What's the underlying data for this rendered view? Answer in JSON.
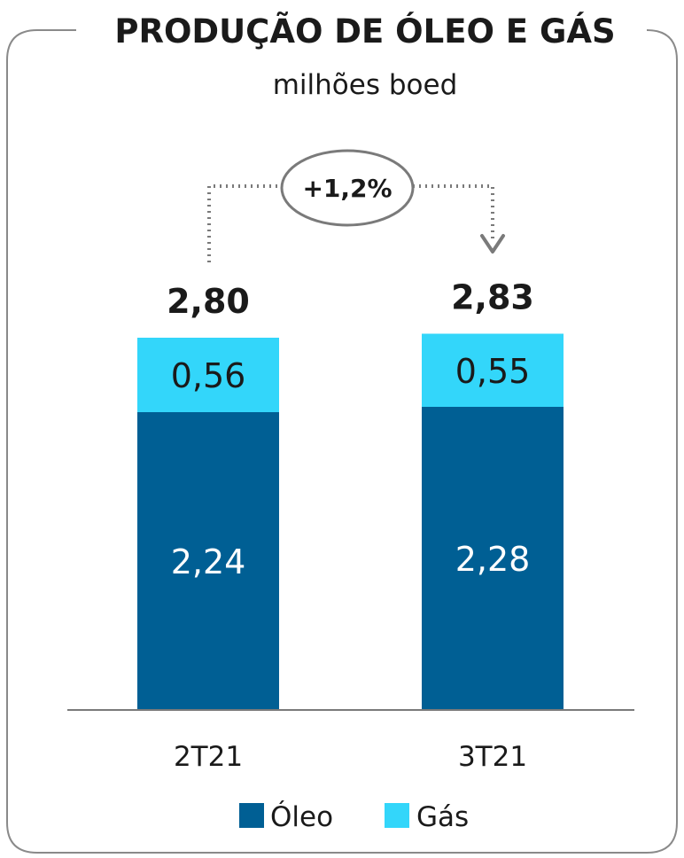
{
  "title": "PRODUÇÃO DE ÓLEO E GÁS",
  "subtitle": "milhões boed",
  "change_label": "+1,2%",
  "colors": {
    "oleo": "#005f94",
    "gas": "#33d6fa",
    "frame": "#8a8a8a",
    "arrow": "#7a7a7a",
    "axis": "#7a7a7a"
  },
  "chart_data": {
    "type": "bar",
    "stacked": true,
    "categories": [
      "2T21",
      "3T21"
    ],
    "series": [
      {
        "name": "Óleo",
        "values": [
          2.24,
          2.28
        ],
        "labels": [
          "2,24",
          "2,28"
        ],
        "color": "#005f94"
      },
      {
        "name": "Gás",
        "values": [
          0.56,
          0.55
        ],
        "labels": [
          "0,56",
          "0,55"
        ],
        "color": "#33d6fa"
      }
    ],
    "totals": [
      2.8,
      2.83
    ],
    "total_labels": [
      "2,80",
      "2,83"
    ],
    "title": "PRODUÇÃO DE ÓLEO E GÁS",
    "ylabel": "milhões boed",
    "legend_position": "bottom",
    "grid": false,
    "annotation": "+1,2%"
  }
}
